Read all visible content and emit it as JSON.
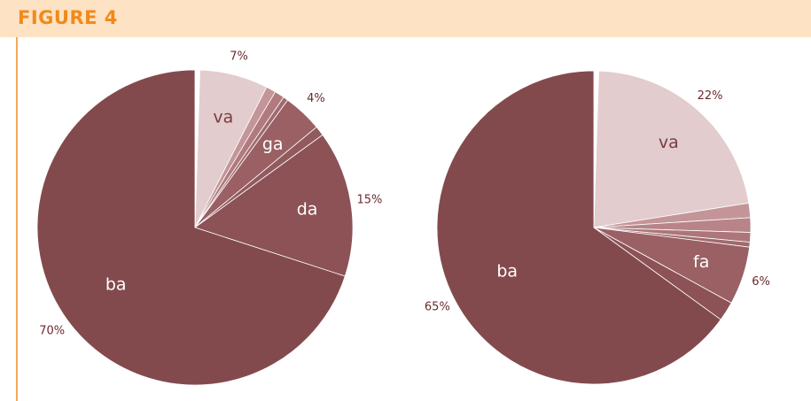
{
  "header": {
    "title": "FIGURE 4"
  },
  "chart_data": [
    {
      "type": "pie",
      "categories": [
        null,
        "va",
        null,
        null,
        null,
        "ga",
        null,
        "da",
        "ba"
      ],
      "values": [
        0.5,
        7,
        1,
        1,
        0.5,
        4,
        1,
        15,
        70
      ],
      "value_labels": [
        null,
        "7%",
        null,
        null,
        null,
        "4%",
        null,
        "15%",
        "70%"
      ],
      "colors": [
        "#ffffff",
        "#e2cccd",
        "#c49598",
        "#b07a7e",
        "#a06a6e",
        "#9a6064",
        "#925a5e",
        "#8c5256",
        "#834a4d"
      ]
    },
    {
      "type": "pie",
      "categories": [
        null,
        "va",
        null,
        null,
        null,
        null,
        "fa",
        null,
        "ba"
      ],
      "values": [
        0.5,
        22,
        1.5,
        1.5,
        1,
        0.5,
        6,
        2,
        65
      ],
      "value_labels": [
        null,
        "22%",
        null,
        null,
        null,
        null,
        "6%",
        null,
        "65%"
      ],
      "colors": [
        "#ffffff",
        "#e2cccd",
        "#c49598",
        "#b88489",
        "#ad767a",
        "#a06a6e",
        "#9a6064",
        "#8c5256",
        "#834a4d"
      ]
    }
  ]
}
